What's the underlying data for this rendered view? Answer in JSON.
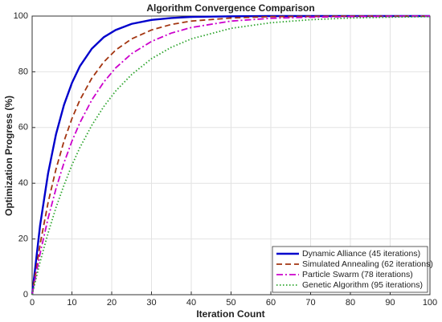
{
  "chart_data": {
    "type": "line",
    "title": "Algorithm Convergence Comparison",
    "x_label": "Iteration Count",
    "y_label": "Optimization Progress (%)",
    "x": [
      0,
      2,
      4,
      6,
      8,
      10,
      12,
      15,
      18,
      21,
      25,
      30,
      35,
      40,
      50,
      60,
      70,
      80,
      90,
      100
    ],
    "series": [
      {
        "name": "Dynamic Alliance (45 iterations)",
        "color": "#0000cc",
        "dash": "solid",
        "values": [
          0,
          24.9,
          43.5,
          57.6,
          68.1,
          76.0,
          82.0,
          88.3,
          92.4,
          95.0,
          97.2,
          98.6,
          99.3,
          99.7,
          99.9,
          100,
          100,
          100,
          100,
          100
        ]
      },
      {
        "name": "Simulated Annealing (62 iterations)",
        "color": "#a33510",
        "dash": "dashed",
        "values": [
          0,
          18.1,
          33.0,
          45.1,
          55.1,
          63.2,
          69.9,
          77.7,
          83.5,
          87.8,
          91.8,
          95.0,
          97.0,
          98.2,
          99.3,
          99.8,
          99.9,
          100,
          100,
          100
        ]
      },
      {
        "name": "Particle Swarm (78 iterations)",
        "color": "#cc00cc",
        "dash": "dashdot",
        "values": [
          0,
          14.8,
          27.4,
          38.1,
          47.3,
          55.1,
          61.7,
          69.9,
          76.3,
          81.4,
          86.5,
          90.9,
          93.9,
          95.9,
          98.2,
          99.2,
          99.6,
          99.8,
          99.9,
          100
        ]
      },
      {
        "name": "Genetic Algorithm (95 iterations)",
        "color": "#2ea52e",
        "dash": "dotted",
        "values": [
          0,
          11.8,
          22.1,
          31.3,
          39.3,
          46.5,
          52.8,
          60.8,
          67.5,
          73.1,
          79.0,
          84.7,
          88.8,
          91.8,
          95.6,
          97.6,
          98.7,
          99.3,
          99.6,
          99.8
        ]
      }
    ],
    "xlim": [
      0,
      100
    ],
    "xticks": [
      0,
      10,
      20,
      30,
      40,
      50,
      60,
      70,
      80,
      90,
      100
    ],
    "ylim": [
      0,
      100
    ],
    "yticks": [
      0,
      20,
      40,
      60,
      80,
      100
    ],
    "grid": true,
    "legend": "lower right"
  }
}
